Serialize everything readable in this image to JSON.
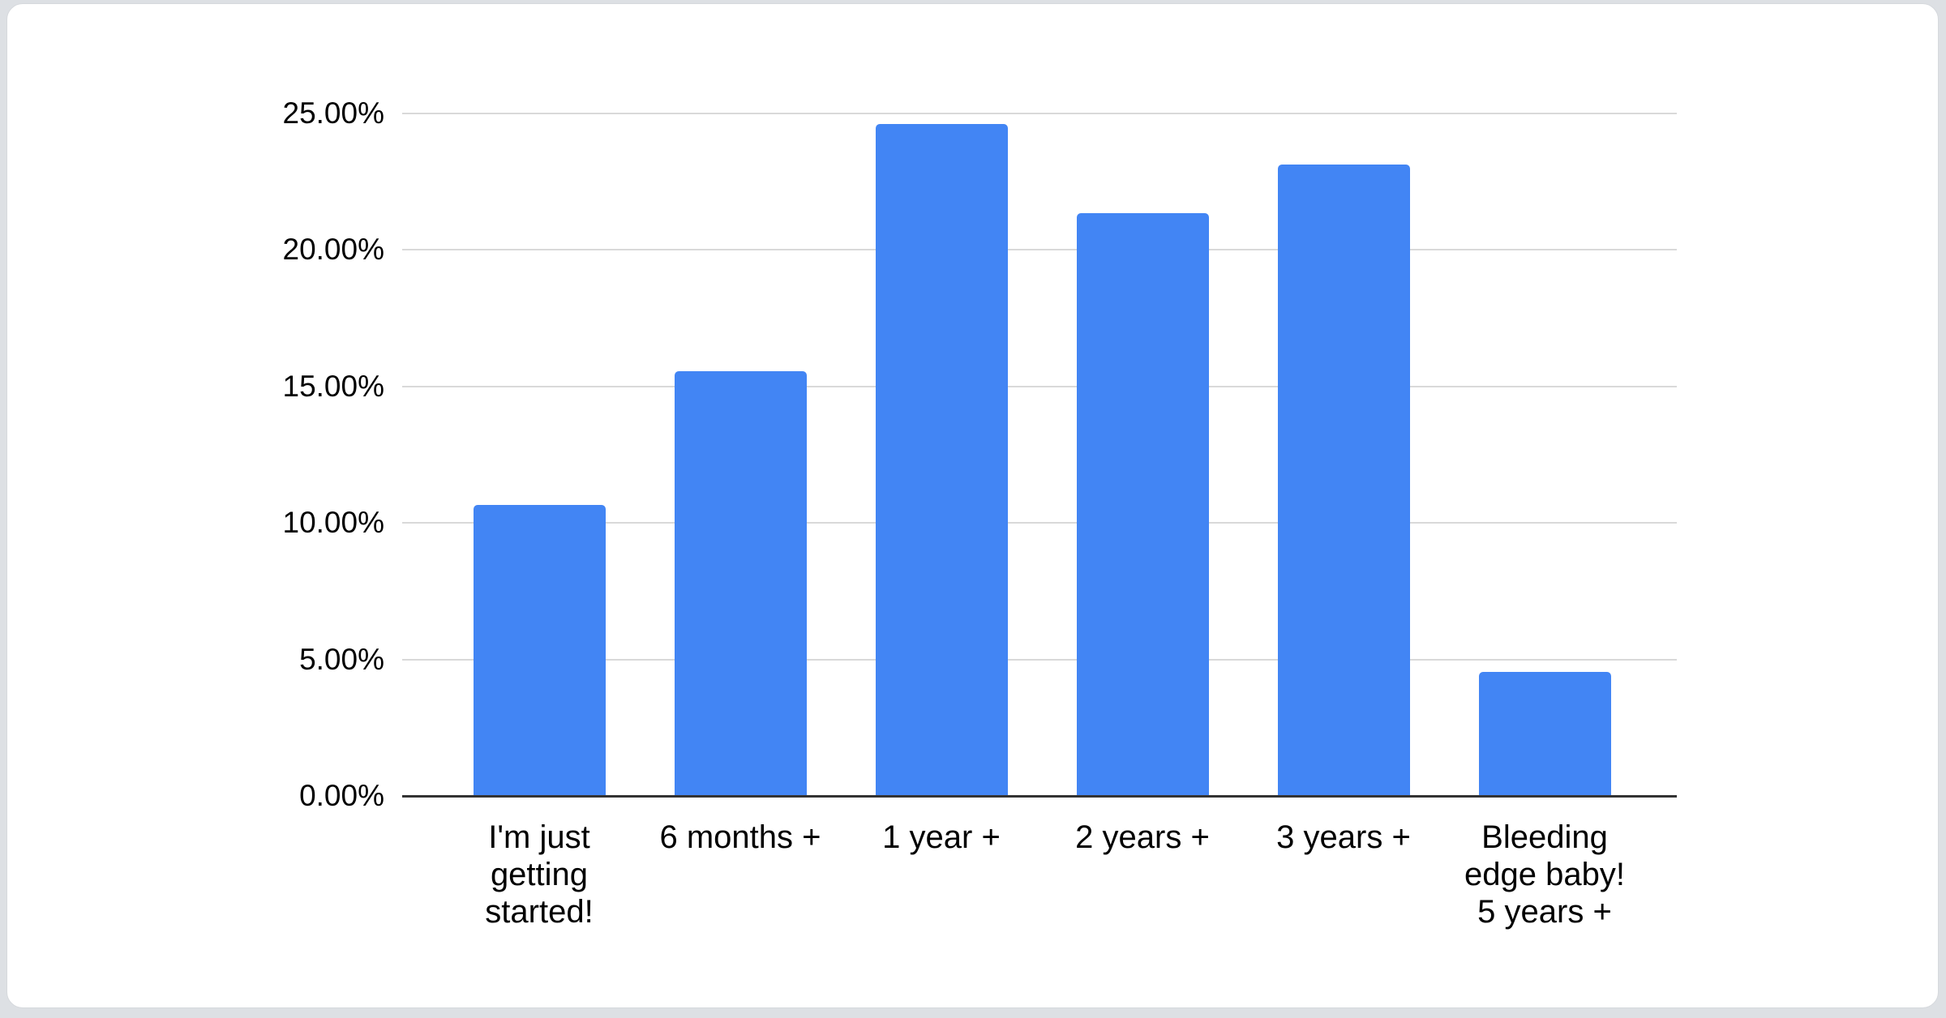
{
  "page": {
    "background_color": "#dde0e4",
    "card_background": "#ffffff",
    "card_border_color": "#d6d9dd"
  },
  "chart_data": {
    "type": "bar",
    "title": "",
    "xlabel": "",
    "ylabel": "",
    "categories": [
      "I'm just getting started!",
      "6 months +",
      "1 year +",
      "2 years +",
      "3 years +",
      "Bleeding edge baby! 5 years +"
    ],
    "category_label_lines": [
      [
        "I'm just",
        "getting",
        "started!"
      ],
      [
        "6 months +"
      ],
      [
        "1 year +"
      ],
      [
        "2 years +"
      ],
      [
        "3 years +"
      ],
      [
        "Bleeding",
        "edge baby!",
        "5 years +"
      ]
    ],
    "values": [
      10.66,
      15.55,
      24.61,
      21.34,
      23.12,
      4.53
    ],
    "value_unit": "percent",
    "ylim": [
      0,
      25
    ],
    "yticks": [
      {
        "value": 0,
        "label": "0.00%"
      },
      {
        "value": 5,
        "label": "5.00%"
      },
      {
        "value": 10,
        "label": "10.00%"
      },
      {
        "value": 15,
        "label": "15.00%"
      },
      {
        "value": 20,
        "label": "20.00%"
      },
      {
        "value": 25,
        "label": "25.00%"
      }
    ],
    "grid": true,
    "legend": "none",
    "bar_color": "#4285f4",
    "gridline_color": "#d9d9d9",
    "axis_line_color": "#333333",
    "text_color": "#000000"
  }
}
